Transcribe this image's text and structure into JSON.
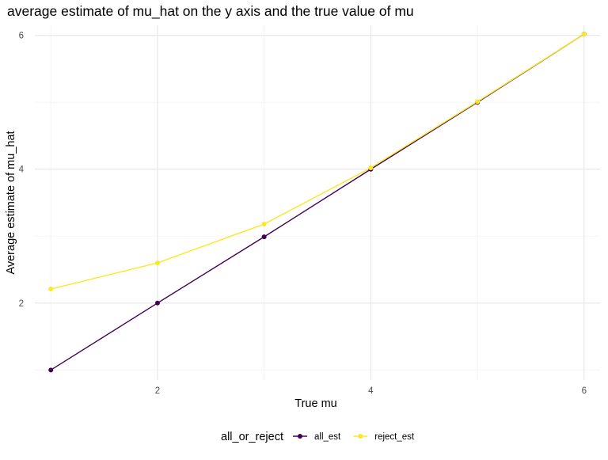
{
  "chart_data": {
    "type": "line",
    "title": "average estimate of mu_hat on the y axis and the true value of mu",
    "xlabel": "True mu",
    "ylabel": "Average estimate of mu_hat",
    "xlim": [
      0.85,
      6.15
    ],
    "ylim": [
      0.85,
      6.15
    ],
    "x_ticks": [
      2,
      4,
      6
    ],
    "y_ticks": [
      2,
      4,
      6
    ],
    "x_minor_grid": [
      1,
      3,
      5
    ],
    "y_minor_grid": [
      1,
      3,
      5
    ],
    "grid": true,
    "legend": {
      "title": "all_or_reject",
      "position": "bottom"
    },
    "series": [
      {
        "name": "all_est",
        "color": "#440154",
        "x": [
          1,
          2,
          3,
          4,
          5,
          6
        ],
        "y": [
          1.0,
          2.0,
          2.99,
          4.0,
          5.0,
          6.02
        ]
      },
      {
        "name": "reject_est",
        "color": "#FDE725",
        "x": [
          1,
          2,
          3,
          4,
          5,
          6
        ],
        "y": [
          2.21,
          2.6,
          3.18,
          4.02,
          5.01,
          6.02
        ]
      }
    ]
  }
}
